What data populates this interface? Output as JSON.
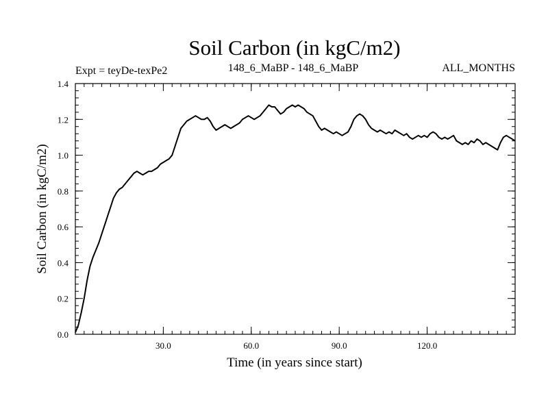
{
  "chart_data": {
    "type": "line",
    "title": "Soil Carbon (in kgC/m2)",
    "subtitle_left": "Expt = teyDe-texPe2",
    "subtitle_center": "148_6_MaBP - 148_6_MaBP",
    "subtitle_right": "ALL_MONTHS",
    "xlabel": "Time (in years since start)",
    "ylabel": "Soil Carbon (in kgC/m2)",
    "xlim": [
      0,
      150
    ],
    "ylim": [
      0.0,
      1.4
    ],
    "x_ticks": [
      {
        "value": 30,
        "label": "30.0"
      },
      {
        "value": 60,
        "label": "60.0"
      },
      {
        "value": 90,
        "label": "90.0"
      },
      {
        "value": 120,
        "label": "120.0"
      }
    ],
    "y_ticks": [
      {
        "value": 0.0,
        "label": "0.0"
      },
      {
        "value": 0.2,
        "label": "0.2"
      },
      {
        "value": 0.4,
        "label": "0.4"
      },
      {
        "value": 0.6,
        "label": "0.6"
      },
      {
        "value": 0.8,
        "label": "0.8"
      },
      {
        "value": 1.0,
        "label": "1.0"
      },
      {
        "value": 1.2,
        "label": "1.2"
      },
      {
        "value": 1.4,
        "label": "1.4"
      }
    ],
    "grid": false,
    "series": [
      {
        "color": "#000000",
        "x": [
          0,
          1,
          2,
          3,
          4,
          5,
          6,
          7,
          8,
          9,
          10,
          11,
          12,
          13,
          14,
          15,
          16,
          17,
          18,
          19,
          20,
          21,
          22,
          23,
          24,
          25,
          26,
          27,
          28,
          29,
          30,
          31,
          32,
          33,
          34,
          35,
          36,
          37,
          38,
          39,
          40,
          41,
          42,
          43,
          44,
          45,
          46,
          47,
          48,
          49,
          50,
          51,
          52,
          53,
          54,
          55,
          56,
          57,
          58,
          59,
          60,
          61,
          62,
          63,
          64,
          65,
          66,
          67,
          68,
          69,
          70,
          71,
          72,
          73,
          74,
          75,
          76,
          77,
          78,
          79,
          80,
          81,
          82,
          83,
          84,
          85,
          86,
          87,
          88,
          89,
          90,
          91,
          92,
          93,
          94,
          95,
          96,
          97,
          98,
          99,
          100,
          101,
          102,
          103,
          104,
          105,
          106,
          107,
          108,
          109,
          110,
          111,
          112,
          113,
          114,
          115,
          116,
          117,
          118,
          119,
          120,
          121,
          122,
          123,
          124,
          125,
          126,
          127,
          128,
          129,
          130,
          131,
          132,
          133,
          134,
          135,
          136,
          137,
          138,
          139,
          140,
          141,
          142,
          143,
          144,
          145,
          146,
          147,
          148,
          149,
          150
        ],
        "y": [
          0.01,
          0.05,
          0.12,
          0.2,
          0.3,
          0.38,
          0.43,
          0.47,
          0.51,
          0.56,
          0.61,
          0.66,
          0.71,
          0.76,
          0.79,
          0.81,
          0.82,
          0.84,
          0.86,
          0.88,
          0.9,
          0.91,
          0.9,
          0.89,
          0.9,
          0.91,
          0.91,
          0.92,
          0.93,
          0.95,
          0.96,
          0.97,
          0.98,
          1.0,
          1.05,
          1.1,
          1.15,
          1.17,
          1.19,
          1.2,
          1.21,
          1.22,
          1.21,
          1.2,
          1.2,
          1.21,
          1.19,
          1.16,
          1.14,
          1.15,
          1.16,
          1.17,
          1.16,
          1.15,
          1.16,
          1.17,
          1.18,
          1.2,
          1.21,
          1.22,
          1.21,
          1.2,
          1.21,
          1.22,
          1.24,
          1.26,
          1.28,
          1.27,
          1.27,
          1.25,
          1.23,
          1.24,
          1.26,
          1.27,
          1.28,
          1.27,
          1.28,
          1.27,
          1.26,
          1.24,
          1.23,
          1.22,
          1.19,
          1.16,
          1.14,
          1.15,
          1.14,
          1.13,
          1.12,
          1.13,
          1.12,
          1.11,
          1.12,
          1.13,
          1.16,
          1.2,
          1.22,
          1.23,
          1.22,
          1.2,
          1.17,
          1.15,
          1.14,
          1.13,
          1.14,
          1.13,
          1.12,
          1.13,
          1.12,
          1.14,
          1.13,
          1.12,
          1.11,
          1.12,
          1.1,
          1.09,
          1.1,
          1.11,
          1.1,
          1.11,
          1.1,
          1.12,
          1.13,
          1.12,
          1.1,
          1.09,
          1.1,
          1.09,
          1.1,
          1.11,
          1.08,
          1.07,
          1.06,
          1.07,
          1.06,
          1.08,
          1.07,
          1.09,
          1.08,
          1.06,
          1.07,
          1.06,
          1.05,
          1.04,
          1.03,
          1.07,
          1.1,
          1.11,
          1.1,
          1.09,
          1.08
        ]
      }
    ]
  }
}
